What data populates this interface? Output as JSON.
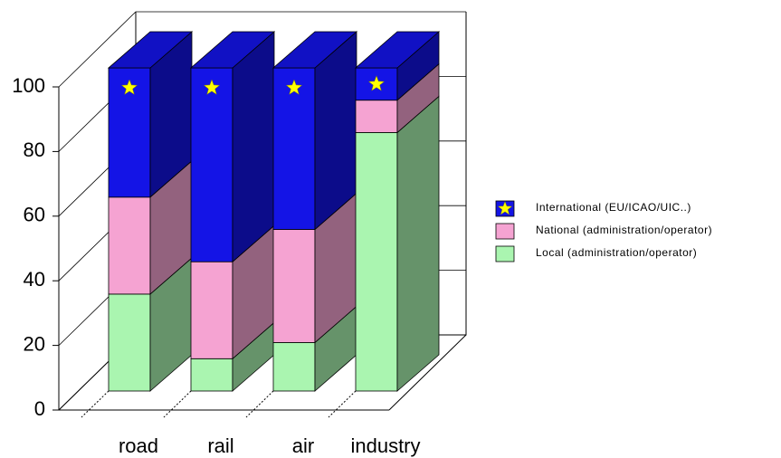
{
  "chart_data": {
    "type": "bar3d_stacked",
    "categories": [
      "road",
      "rail",
      "air",
      "industry"
    ],
    "series": [
      {
        "name": "Local (administration/operator)",
        "color": "#aaf5b0",
        "values": [
          30,
          10,
          15,
          80
        ]
      },
      {
        "name": "National (administration/operator)",
        "color": "#f5a3d2",
        "values": [
          30,
          30,
          35,
          10
        ]
      },
      {
        "name": "International (EU/ICAO/UIC..)",
        "color": "#1414e6",
        "values": [
          40,
          60,
          50,
          10
        ]
      }
    ],
    "ylim": [
      0,
      100
    ],
    "yticks": [
      0,
      20,
      40,
      60,
      80,
      100
    ],
    "grid": true
  }
}
